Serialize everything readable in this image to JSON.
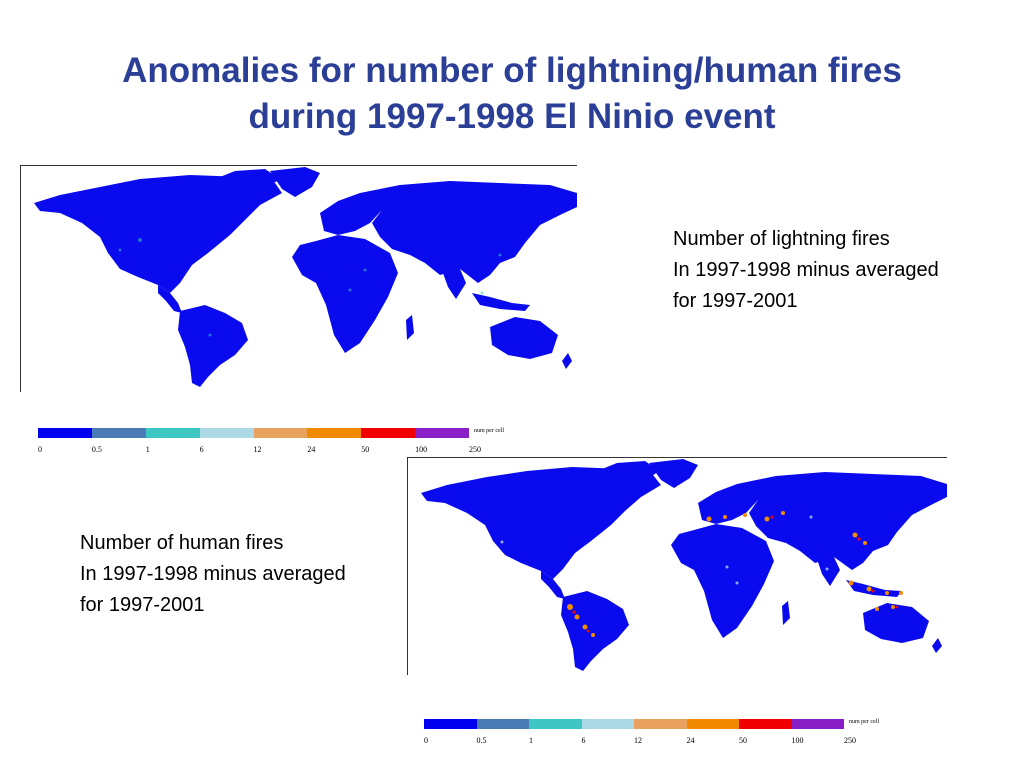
{
  "title": {
    "line1": "Anomalies for number of lightning/human fires",
    "line2": "during 1997-1998 El Ninio event"
  },
  "maps": [
    {
      "caption": [
        "Number of lightning fires",
        "In 1997-1998 minus averaged",
        "for 1997-2001"
      ],
      "legend": {
        "unit": "num per cell",
        "ticks": [
          "0",
          "0.5",
          "1",
          "6",
          "12",
          "24",
          "50",
          "100",
          "250"
        ]
      },
      "hotspots": []
    },
    {
      "caption": [
        "Number of human fires",
        "In 1997-1998 minus averaged",
        "for 1997-2001"
      ],
      "legend": {
        "unit": "num per cell",
        "ticks": [
          "0",
          "0.5",
          "1",
          "6",
          "12",
          "24",
          "50",
          "100",
          "250"
        ]
      },
      "hotspots": [
        "South America",
        "Mediterranean",
        "Central Asia",
        "East Asia",
        "Southeast Asia",
        "Northern Australia"
      ]
    }
  ],
  "legend_colors": [
    "#0000ee",
    "#4a7bb7",
    "#3ec7c2",
    "#add8e6",
    "#e9a160",
    "#f28a00",
    "#f00000",
    "#8a1fc7"
  ],
  "land_color": "#0a0aee"
}
